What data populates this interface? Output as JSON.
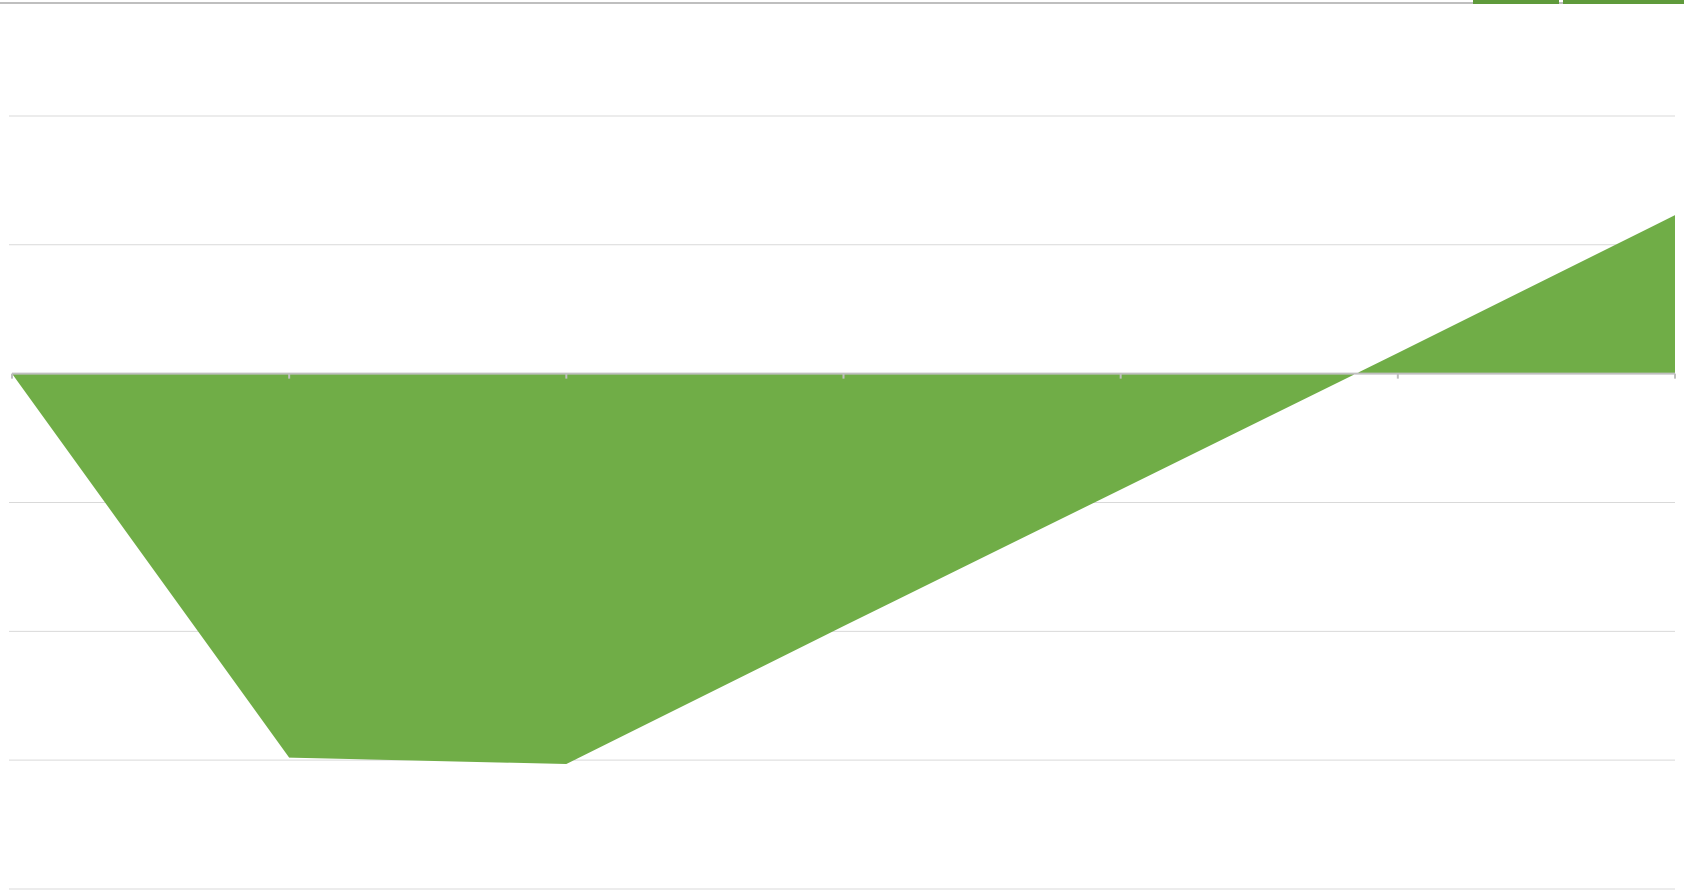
{
  "chart_data": {
    "type": "area",
    "categories": [
      null,
      null,
      null,
      null,
      null,
      null,
      null
    ],
    "series": [
      {
        "color": "#70ad47",
        "values": [
          0,
          -2.98,
          -3.03,
          -1.96,
          -0.9,
          0.16,
          1.23
        ]
      }
    ],
    "ylim": [
      -4,
      2.9
    ],
    "yticks": [
      -4,
      -3,
      -2,
      -1,
      0,
      1,
      2
    ],
    "grid": true
  }
}
